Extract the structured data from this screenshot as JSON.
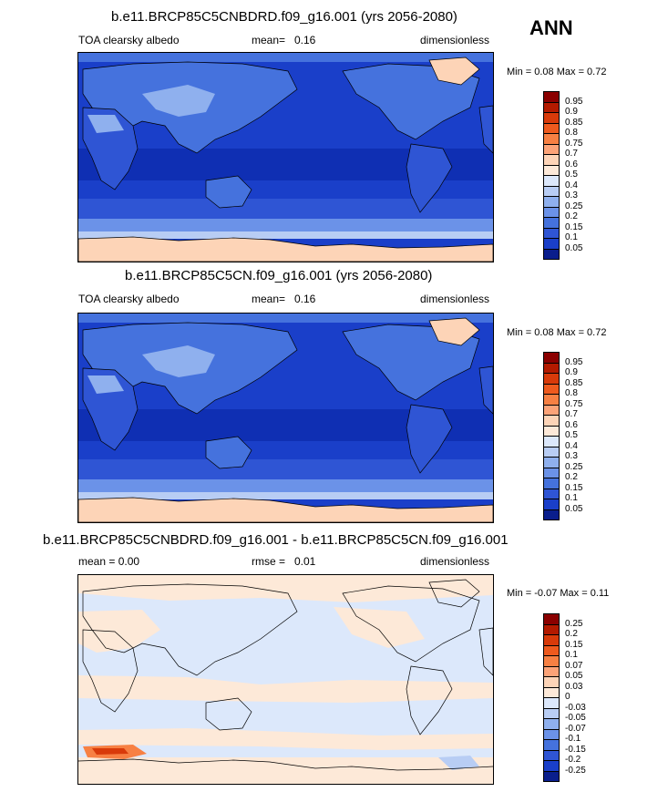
{
  "season": "ANN",
  "panels": [
    {
      "title": "b.e11.BRCP85C5CNBDRD.f09_g16.001 (yrs 2056-2080)",
      "left_label": "TOA clearsky albedo",
      "stat_label": "mean=",
      "stat_value": "0.16",
      "units": "dimensionless",
      "minmax": "Min =   0.08 Max =   0.72"
    },
    {
      "title": "b.e11.BRCP85C5CN.f09_g16.001 (yrs 2056-2080)",
      "left_label": "TOA clearsky albedo",
      "stat_label": "mean=",
      "stat_value": "0.16",
      "units": "dimensionless",
      "minmax": "Min =   0.08 Max =   0.72"
    },
    {
      "title": "b.e11.BRCP85C5CNBDRD.f09_g16.001 - b.e11.BRCP85C5CN.f09_g16.001",
      "left_label": "mean =   0.00",
      "stat_label": "rmse =",
      "stat_value": "0.01",
      "units": "dimensionless",
      "minmax": "Min =  -0.07 Max =   0.11"
    }
  ],
  "colorbar_abs": {
    "labels": [
      "0.95",
      "0.9",
      "0.85",
      "0.8",
      "0.75",
      "0.7",
      "0.6",
      "0.5",
      "0.4",
      "0.3",
      "0.25",
      "0.2",
      "0.15",
      "0.1",
      "0.05"
    ],
    "colors": [
      "#8b0000",
      "#b31a00",
      "#d83a0a",
      "#ee5a1e",
      "#f78043",
      "#fca378",
      "#fdd4b7",
      "#fde9d8",
      "#dce8fb",
      "#b8cdf4",
      "#8fb0ee",
      "#6b92e8",
      "#4572dd",
      "#2f55d4",
      "#1a3fc9",
      "#0a1e8c"
    ]
  },
  "colorbar_diff": {
    "labels": [
      "0.25",
      "0.2",
      "0.15",
      "0.1",
      "0.07",
      "0.05",
      "0.03",
      "0",
      "-0.03",
      "-0.05",
      "-0.07",
      "-0.1",
      "-0.15",
      "-0.2",
      "-0.25"
    ],
    "colors": [
      "#8b0000",
      "#b31a00",
      "#d83a0a",
      "#ee5a1e",
      "#f78043",
      "#fca378",
      "#fdd4b7",
      "#fde9d8",
      "#dce8fb",
      "#b8cdf4",
      "#8fb0ee",
      "#6b92e8",
      "#4572dd",
      "#2f55d4",
      "#1a3fc9",
      "#0a1e8c"
    ]
  }
}
